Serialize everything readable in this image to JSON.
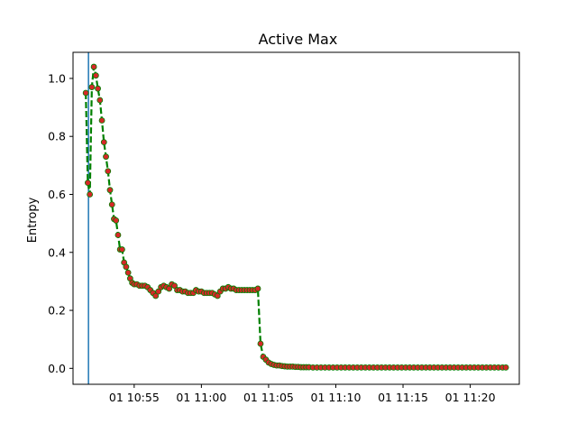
{
  "chart_data": {
    "type": "line",
    "title": "Active Max",
    "xlabel": "",
    "ylabel": "Entropy",
    "x_unit": "minutes after 10:50",
    "xlim": [
      0.45,
      33.65
    ],
    "ylim": [
      -0.055,
      1.09
    ],
    "xticks": [
      {
        "label": "01 10:55",
        "value": 5
      },
      {
        "label": "01 11:00",
        "value": 10
      },
      {
        "label": "01 11:05",
        "value": 15
      },
      {
        "label": "01 11:10",
        "value": 20
      },
      {
        "label": "01 11:15",
        "value": 25
      },
      {
        "label": "01 11:20",
        "value": 30
      }
    ],
    "yticks": [
      {
        "label": "0.0",
        "value": 0.0
      },
      {
        "label": "0.2",
        "value": 0.2
      },
      {
        "label": "0.4",
        "value": 0.4
      },
      {
        "label": "0.6",
        "value": 0.6
      },
      {
        "label": "0.8",
        "value": 0.8
      },
      {
        "label": "1.0",
        "value": 1.0
      }
    ],
    "vline": {
      "x": 1.6,
      "color": "#1f77b4"
    },
    "series": [
      {
        "line_color": "#008000",
        "marker_color": "#d62728",
        "line_style": "dashed",
        "x": [
          1.4,
          1.55,
          1.7,
          1.85,
          2.0,
          2.15,
          2.3,
          2.45,
          2.6,
          2.75,
          2.9,
          3.05,
          3.2,
          3.35,
          3.5,
          3.65,
          3.8,
          3.95,
          4.1,
          4.25,
          4.4,
          4.55,
          4.7,
          4.85,
          5.0,
          5.2,
          5.4,
          5.6,
          5.8,
          6.0,
          6.2,
          6.4,
          6.6,
          6.8,
          7.0,
          7.2,
          7.4,
          7.6,
          7.8,
          8.0,
          8.2,
          8.4,
          8.6,
          8.8,
          9.0,
          9.2,
          9.4,
          9.6,
          9.8,
          10.0,
          10.2,
          10.4,
          10.6,
          10.8,
          11.0,
          11.2,
          11.4,
          11.6,
          11.8,
          12.0,
          12.2,
          12.4,
          12.6,
          12.8,
          13.0,
          13.2,
          13.4,
          13.6,
          13.8,
          14.0,
          14.2,
          14.4,
          14.6,
          14.8,
          15.0,
          15.2,
          15.4,
          15.6,
          15.8,
          16.0,
          16.2,
          16.4,
          16.6,
          16.8,
          17.0,
          17.2,
          17.4,
          17.6,
          17.8,
          18.0,
          18.3,
          18.6,
          18.9,
          19.2,
          19.5,
          19.8,
          20.1,
          20.4,
          20.7,
          21.0,
          21.3,
          21.6,
          21.9,
          22.2,
          22.5,
          22.8,
          23.1,
          23.4,
          23.7,
          24.0,
          24.3,
          24.6,
          24.9,
          25.2,
          25.5,
          25.8,
          26.1,
          26.4,
          26.7,
          27.0,
          27.3,
          27.6,
          27.9,
          28.2,
          28.5,
          28.8,
          29.1,
          29.4,
          29.7,
          30.0,
          30.3,
          30.6,
          30.9,
          31.2,
          31.5,
          31.8,
          32.1,
          32.4,
          32.65
        ],
        "y": [
          0.95,
          0.64,
          0.6,
          0.97,
          1.04,
          1.01,
          0.965,
          0.925,
          0.855,
          0.78,
          0.73,
          0.68,
          0.615,
          0.565,
          0.515,
          0.51,
          0.46,
          0.41,
          0.41,
          0.365,
          0.35,
          0.33,
          0.31,
          0.295,
          0.29,
          0.29,
          0.285,
          0.285,
          0.285,
          0.28,
          0.27,
          0.26,
          0.25,
          0.265,
          0.28,
          0.285,
          0.28,
          0.275,
          0.29,
          0.285,
          0.27,
          0.27,
          0.265,
          0.265,
          0.26,
          0.26,
          0.26,
          0.27,
          0.265,
          0.265,
          0.26,
          0.26,
          0.26,
          0.26,
          0.255,
          0.25,
          0.265,
          0.275,
          0.275,
          0.28,
          0.275,
          0.275,
          0.27,
          0.27,
          0.27,
          0.27,
          0.27,
          0.27,
          0.27,
          0.27,
          0.275,
          0.085,
          0.04,
          0.03,
          0.02,
          0.015,
          0.012,
          0.01,
          0.01,
          0.008,
          0.007,
          0.006,
          0.006,
          0.006,
          0.005,
          0.005,
          0.004,
          0.004,
          0.004,
          0.004,
          0.003,
          0.003,
          0.003,
          0.003,
          0.003,
          0.003,
          0.003,
          0.003,
          0.003,
          0.003,
          0.003,
          0.003,
          0.003,
          0.003,
          0.003,
          0.003,
          0.003,
          0.003,
          0.003,
          0.003,
          0.003,
          0.003,
          0.003,
          0.003,
          0.003,
          0.003,
          0.003,
          0.003,
          0.003,
          0.003,
          0.003,
          0.003,
          0.003,
          0.003,
          0.003,
          0.003,
          0.003,
          0.003,
          0.003,
          0.003,
          0.003,
          0.003,
          0.003,
          0.003,
          0.003,
          0.003,
          0.003,
          0.003,
          0.003
        ]
      }
    ]
  }
}
